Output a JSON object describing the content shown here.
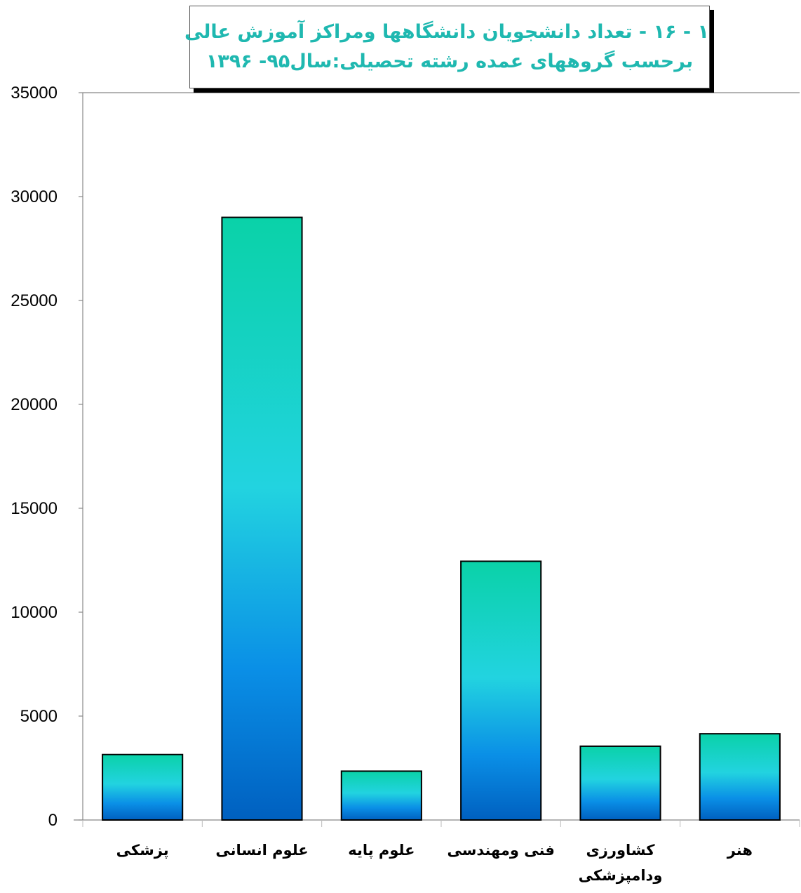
{
  "title_lines": [
    "۱ - ۱۶ -  تعداد دانشجویان دانشگاهها ومراکز آموزش عالی",
    "برحسب گروههای عمده رشته تحصیلی:سال۹۵- ۱۳۹۶"
  ],
  "chart_data": {
    "type": "bar",
    "title": "۱ - ۱۶ -  تعداد دانشجویان دانشگاهها ومراکز آموزش عالی برحسب گروههای عمده رشته تحصیلی:سال۹۵- ۱۳۹۶",
    "categories": [
      "پزشکی",
      "علوم انسانی",
      "علوم پایه",
      "فنی ومهندسی",
      "کشاورزی ودامپزشکی",
      "هنر"
    ],
    "category_lines": [
      [
        "پزشکی"
      ],
      [
        "علوم انسانی"
      ],
      [
        "علوم پایه"
      ],
      [
        "فنی ومهندسی"
      ],
      [
        "کشاورزی",
        "ودامپزشکی"
      ],
      [
        "هنر"
      ]
    ],
    "values": [
      3150,
      29000,
      2350,
      12450,
      3550,
      4150
    ],
    "ylim": [
      0,
      35000
    ],
    "yticks": [
      0,
      5000,
      10000,
      15000,
      20000,
      25000,
      30000,
      35000
    ],
    "ytick_labels": [
      "0",
      "5000",
      "10000",
      "15000",
      "20000",
      "25000",
      "30000",
      "35000"
    ],
    "gridlines": false,
    "legend": "none",
    "colors": {
      "bar_top": "#0ad2a8",
      "bar_mid": "#22d3e0",
      "bar_low": "#0a8fe6",
      "bar_bottom": "#0060c0",
      "edge": "#000000",
      "axis": "#888888"
    }
  }
}
